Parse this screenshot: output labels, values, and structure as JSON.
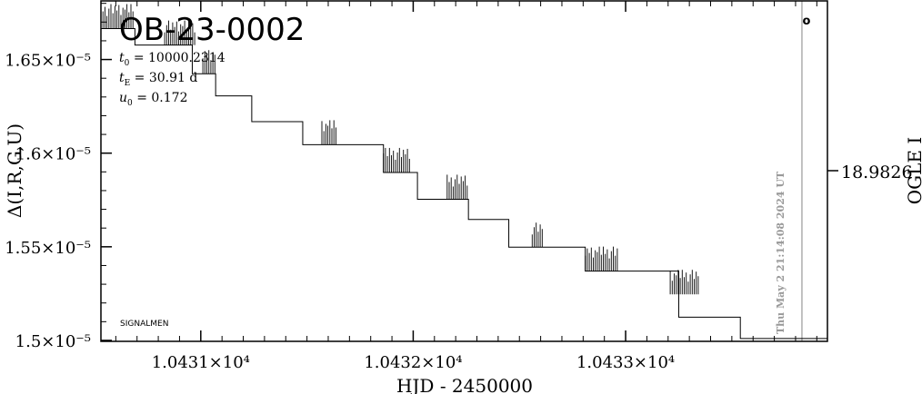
{
  "chart_data": {
    "type": "line",
    "title": "OB-23-0002",
    "params": [
      {
        "sym": "t",
        "sub": "0",
        "eq": " = 10000.2314"
      },
      {
        "sym": "t",
        "sub": "E",
        "eq": " = 30.91 d"
      },
      {
        "sym": "u",
        "sub": "0",
        "eq": " = 0.172"
      }
    ],
    "xlabel": "HJD - 2450000",
    "ylabel": "Δ(I,R,G,U)",
    "ylabel_right": "OGLE I",
    "right_tick": "18.9826",
    "timestamp": "Thu May  2 21:14:08 2024 UT",
    "footer": "SIGNALMEN",
    "marker": "o",
    "xlim": [
      10430.53,
      10433.95
    ],
    "ylim": [
      1.4995e-05,
      1.6813e-05
    ],
    "x_ticks": [
      {
        "value": 10431,
        "label": "1.0431×10⁴"
      },
      {
        "value": 10432,
        "label": "1.0432×10⁴"
      },
      {
        "value": 10433,
        "label": "1.0433×10⁴"
      }
    ],
    "y_ticks": [
      {
        "value": 1.65e-05,
        "label": "1.65×10⁻⁵"
      },
      {
        "value": 1.6e-05,
        "label": "1.6×10⁻⁵"
      },
      {
        "value": 1.55e-05,
        "label": "1.55×10⁻⁵"
      },
      {
        "value": 1.5e-05,
        "label": "1.5×10⁻⁵"
      }
    ],
    "vline_x": 10433.83,
    "steps": [
      {
        "x": 10430.53,
        "y": 1.6665e-05
      },
      {
        "x": 10430.69,
        "y": 1.6577e-05
      },
      {
        "x": 10430.96,
        "y": 1.6424e-05
      },
      {
        "x": 10431.07,
        "y": 1.6306e-05
      },
      {
        "x": 10431.24,
        "y": 1.6168e-05
      },
      {
        "x": 10431.48,
        "y": 1.6045e-05
      },
      {
        "x": 10431.86,
        "y": 1.5897e-05
      },
      {
        "x": 10432.02,
        "y": 1.5754e-05
      },
      {
        "x": 10432.26,
        "y": 1.5646e-05
      },
      {
        "x": 10432.45,
        "y": 1.5498e-05
      },
      {
        "x": 10432.81,
        "y": 1.537e-05
      },
      {
        "x": 10433.25,
        "y": 1.5124e-05
      },
      {
        "x": 10433.54,
        "y": 1.501e-05
      },
      {
        "x": 10433.83,
        "y": 1.501e-05
      }
    ],
    "clusters": [
      {
        "x0": 10430.53,
        "x1": 10430.69,
        "y": 1.6665e-05
      },
      {
        "x0": 10430.83,
        "x1": 10430.98,
        "y": 1.6577e-05
      },
      {
        "x0": 10431.01,
        "x1": 10431.07,
        "y": 1.6424e-05
      },
      {
        "x0": 10431.57,
        "x1": 10431.64,
        "y": 1.6045e-05
      },
      {
        "x0": 10431.86,
        "x1": 10431.99,
        "y": 1.5897e-05
      },
      {
        "x0": 10432.16,
        "x1": 10432.26,
        "y": 1.5754e-05
      },
      {
        "x0": 10432.56,
        "x1": 10432.61,
        "y": 1.5498e-05
      },
      {
        "x0": 10432.81,
        "x1": 10432.97,
        "y": 1.537e-05
      },
      {
        "x0": 10433.21,
        "x1": 10433.35,
        "y": 1.5246e-05
      }
    ]
  }
}
